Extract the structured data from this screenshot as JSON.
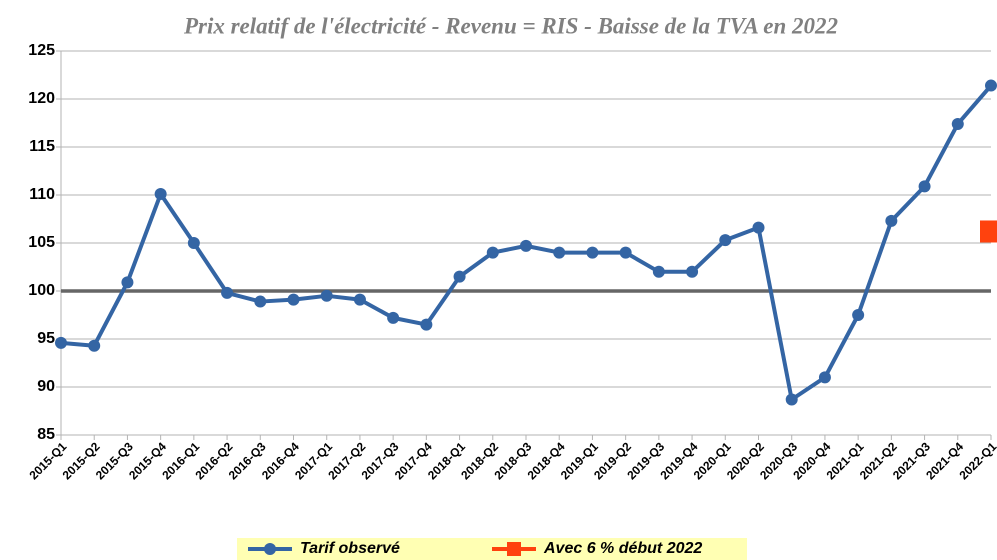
{
  "chart_data": {
    "type": "line",
    "title": "Prix relatif de l'électricité - Revenu = RIS - Baisse de la TVA en 2022",
    "categories": [
      "2015-Q1",
      "2015-Q2",
      "2015-Q3",
      "2015-Q4",
      "2016-Q1",
      "2016-Q2",
      "2016-Q3",
      "2016-Q4",
      "2017-Q1",
      "2017-Q2",
      "2017-Q3",
      "2017-Q4",
      "2018-Q1",
      "2018-Q2",
      "2018-Q3",
      "2018-Q4",
      "2019-Q1",
      "2019-Q2",
      "2019-Q3",
      "2019-Q4",
      "2020-Q1",
      "2020-Q2",
      "2020-Q3",
      "2020-Q4",
      "2021-Q1",
      "2021-Q2",
      "2021-Q3",
      "2021-Q4",
      "2022-Q1"
    ],
    "series": [
      {
        "name": "Tarif observé",
        "color": "#3465a4",
        "marker": "circle",
        "values": [
          94.6,
          94.3,
          100.9,
          110.1,
          105,
          99.8,
          98.9,
          99.1,
          99.5,
          99.1,
          97.2,
          96.5,
          101.5,
          104,
          104.7,
          104,
          104,
          104,
          102,
          102,
          105.3,
          106.6,
          88.7,
          91,
          97.5,
          107.3,
          110.9,
          117.4,
          121.4
        ]
      },
      {
        "name": "Avec 6 % début 2022",
        "color": "#ff420e",
        "marker": "square",
        "values": [
          null,
          null,
          null,
          null,
          null,
          null,
          null,
          null,
          null,
          null,
          null,
          null,
          null,
          null,
          null,
          null,
          null,
          null,
          null,
          null,
          null,
          null,
          null,
          null,
          null,
          null,
          null,
          null,
          106.2
        ]
      }
    ],
    "reference_line": 100,
    "ylim": [
      85,
      125
    ],
    "yticks": [
      85,
      90,
      95,
      100,
      105,
      110,
      115,
      120,
      125
    ],
    "grid": true
  }
}
